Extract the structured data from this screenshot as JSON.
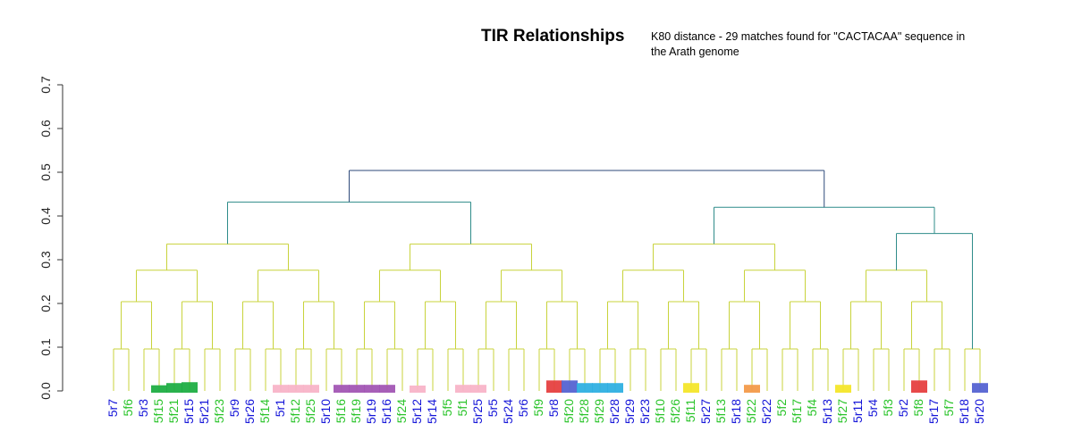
{
  "chart_data": {
    "type": "dendrogram",
    "title": "TIR Relationships",
    "subtitle": "K80 distance - 29 matches found for \"CACTACAA\" sequence in the Arath genome",
    "ylabel": "",
    "xlabel": "",
    "ylim": [
      0,
      0.7
    ],
    "yticks": [
      "0.0",
      "0.1",
      "0.2",
      "0.3",
      "0.4",
      "0.5",
      "0.6",
      "0.7"
    ],
    "grid": false,
    "legend": "none",
    "colors": {
      "label_f": "#2bc42b",
      "label_r": "#1515d8",
      "branch_low": "#c8d33b",
      "branch_high": "#2e4a7a",
      "mark_green": "#1fae43",
      "mark_pink": "#f8b4c8",
      "mark_purple": "#a256b4",
      "mark_blue": "#2fb0e2",
      "mark_red": "#e64040",
      "mark_indigo": "#5563d2",
      "mark_yellow": "#f4e62a",
      "mark_orange": "#f39a4a"
    },
    "leaves": [
      {
        "label": "5r7",
        "mark": "",
        "mark_h": 0
      },
      {
        "label": "5f6",
        "mark": "",
        "mark_h": 0
      },
      {
        "label": "5r3",
        "mark": "",
        "mark_h": 0
      },
      {
        "label": "5f15",
        "mark": "mark_green",
        "mark_h": 0.017
      },
      {
        "label": "5f21",
        "mark": "mark_green",
        "mark_h": 0.022
      },
      {
        "label": "5r15",
        "mark": "mark_green",
        "mark_h": 0.024
      },
      {
        "label": "5r21",
        "mark": "",
        "mark_h": 0
      },
      {
        "label": "5f23",
        "mark": "",
        "mark_h": 0
      },
      {
        "label": "5r9",
        "mark": "",
        "mark_h": 0
      },
      {
        "label": "5r26",
        "mark": "",
        "mark_h": 0
      },
      {
        "label": "5f14",
        "mark": "",
        "mark_h": 0
      },
      {
        "label": "5r1",
        "mark": "mark_pink",
        "mark_h": 0.018
      },
      {
        "label": "5f12",
        "mark": "mark_pink",
        "mark_h": 0.018
      },
      {
        "label": "5f25",
        "mark": "mark_pink",
        "mark_h": 0.018
      },
      {
        "label": "5r10",
        "mark": "",
        "mark_h": 0
      },
      {
        "label": "5f16",
        "mark": "mark_purple",
        "mark_h": 0.018
      },
      {
        "label": "5f19",
        "mark": "mark_purple",
        "mark_h": 0.018
      },
      {
        "label": "5r19",
        "mark": "mark_purple",
        "mark_h": 0.018
      },
      {
        "label": "5r16",
        "mark": "mark_purple",
        "mark_h": 0.018
      },
      {
        "label": "5f24",
        "mark": "",
        "mark_h": 0
      },
      {
        "label": "5r12",
        "mark": "mark_pink",
        "mark_h": 0.012
      },
      {
        "label": "5r14",
        "mark": "",
        "mark_h": 0
      },
      {
        "label": "5f5",
        "mark": "",
        "mark_h": 0
      },
      {
        "label": "5f1",
        "mark": "mark_pink",
        "mark_h": 0.018
      },
      {
        "label": "5r25",
        "mark": "mark_pink",
        "mark_h": 0.018
      },
      {
        "label": "5r5",
        "mark": "",
        "mark_h": 0
      },
      {
        "label": "5r24",
        "mark": "",
        "mark_h": 0
      },
      {
        "label": "5r6",
        "mark": "",
        "mark_h": 0
      },
      {
        "label": "5f9",
        "mark": "",
        "mark_h": 0
      },
      {
        "label": "5r8",
        "mark": "mark_red",
        "mark_h": 0.028
      },
      {
        "label": "5f20",
        "mark": "mark_indigo",
        "mark_h": 0.028
      },
      {
        "label": "5f28",
        "mark": "mark_blue",
        "mark_h": 0.022
      },
      {
        "label": "5f29",
        "mark": "mark_blue",
        "mark_h": 0.022
      },
      {
        "label": "5r28",
        "mark": "mark_blue",
        "mark_h": 0.022
      },
      {
        "label": "5r29",
        "mark": "",
        "mark_h": 0
      },
      {
        "label": "5r23",
        "mark": "",
        "mark_h": 0
      },
      {
        "label": "5f10",
        "mark": "",
        "mark_h": 0
      },
      {
        "label": "5f26",
        "mark": "",
        "mark_h": 0
      },
      {
        "label": "5f11",
        "mark": "mark_yellow",
        "mark_h": 0.022
      },
      {
        "label": "5r27",
        "mark": "",
        "mark_h": 0
      },
      {
        "label": "5f13",
        "mark": "",
        "mark_h": 0
      },
      {
        "label": "5r18",
        "mark": "",
        "mark_h": 0
      },
      {
        "label": "5f22",
        "mark": "mark_orange",
        "mark_h": 0.018
      },
      {
        "label": "5r22",
        "mark": "",
        "mark_h": 0
      },
      {
        "label": "5f2",
        "mark": "",
        "mark_h": 0
      },
      {
        "label": "5f17",
        "mark": "",
        "mark_h": 0
      },
      {
        "label": "5f4",
        "mark": "",
        "mark_h": 0
      },
      {
        "label": "5r13",
        "mark": "",
        "mark_h": 0
      },
      {
        "label": "5f27",
        "mark": "mark_yellow",
        "mark_h": 0.018
      },
      {
        "label": "5r11",
        "mark": "",
        "mark_h": 0
      },
      {
        "label": "5r4",
        "mark": "",
        "mark_h": 0
      },
      {
        "label": "5f3",
        "mark": "",
        "mark_h": 0
      },
      {
        "label": "5r2",
        "mark": "",
        "mark_h": 0
      },
      {
        "label": "5f8",
        "mark": "mark_red",
        "mark_h": 0.028
      },
      {
        "label": "5r17",
        "mark": "",
        "mark_h": 0
      },
      {
        "label": "5f7",
        "mark": "",
        "mark_h": 0
      },
      {
        "label": "5r18",
        "mark": "",
        "mark_h": 0
      },
      {
        "label": "5r20",
        "mark": "mark_indigo",
        "mark_h": 0.022
      }
    ],
    "merges": [
      {
        "left": 3,
        "right": 4,
        "height": 0.063
      },
      {
        "left": 10,
        "right": 11,
        "height": 0.063
      },
      {
        "left": 20,
        "right": 21,
        "height": 0.09
      },
      {
        "left": 25,
        "right": 26,
        "height": 0.14
      },
      {
        "left": 39,
        "right": 40,
        "height": 0.14
      },
      {
        "left": 45,
        "right": 46,
        "height": 0.14
      },
      {
        "left": 50,
        "right": 51,
        "height": 0.14
      },
      {
        "left": 48,
        "right": 49,
        "height": 0.2
      },
      {
        "left": 17,
        "right": 18,
        "height": 0.2
      },
      {
        "left": 33,
        "right": 34,
        "height": 0.17
      },
      {
        "left": 37,
        "right": 38,
        "height": 0.46
      },
      {
        "left": 44,
        "right": 45,
        "height": 0.31
      },
      {
        "left": 54,
        "right": 55,
        "height": 0.27
      },
      {
        "left": 57,
        "right": 58,
        "height": 0.31
      }
    ]
  }
}
